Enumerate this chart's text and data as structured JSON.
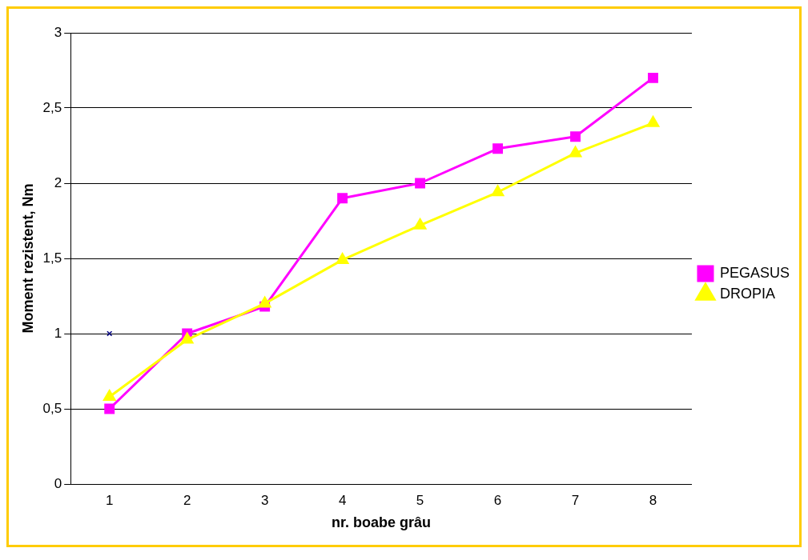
{
  "chart_data": {
    "type": "line",
    "xlabel": "nr. boabe grâu",
    "ylabel": "Moment rezistent, Nm",
    "categories": [
      "1",
      "2",
      "3",
      "4",
      "5",
      "6",
      "7",
      "8"
    ],
    "series": [
      {
        "name": "PEGASUS",
        "color": "#ff00ff",
        "marker": "square",
        "values": [
          0.5,
          1.0,
          1.18,
          1.9,
          2.0,
          2.23,
          2.31,
          2.7
        ]
      },
      {
        "name": "DROPIA",
        "color": "#ffff00",
        "marker": "triangle",
        "values": [
          0.58,
          0.96,
          1.2,
          1.49,
          1.72,
          1.94,
          2.2,
          2.4
        ]
      },
      {
        "type": "scatter",
        "color": "#000080",
        "marker": "cross",
        "x": [
          "1"
        ],
        "values": [
          1
        ]
      }
    ],
    "ylim": [
      0,
      3
    ],
    "yticks": [
      0,
      {
        "value": 0.5,
        "label": "0,5"
      },
      1,
      {
        "value": 1.5,
        "label": "1,5"
      },
      2,
      {
        "value": 2.5,
        "label": "2,5"
      },
      3
    ],
    "grid": "y",
    "legend": "right",
    "line_style": "solid"
  }
}
